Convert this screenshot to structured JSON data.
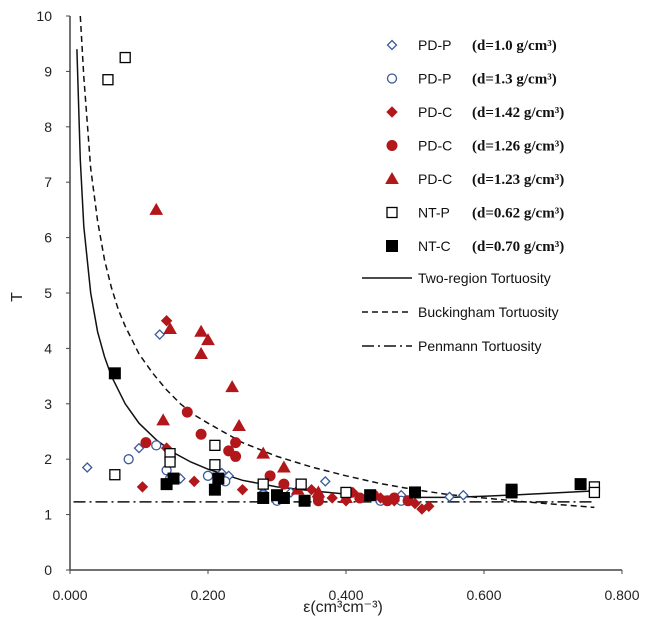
{
  "chart_data": {
    "type": "scatter",
    "xlabel": "ε(cm³cm⁻³)",
    "ylabel": "T",
    "xlim": [
      0,
      0.8
    ],
    "ylim": [
      0,
      10
    ],
    "x_ticks": [
      "0.000",
      "0.200",
      "0.400",
      "0.600",
      "0.800"
    ],
    "y_ticks": [
      "0",
      "1",
      "2",
      "3",
      "4",
      "5",
      "6",
      "7",
      "8",
      "9",
      "10"
    ],
    "grid": false,
    "legend_position": "top-right",
    "series": [
      {
        "name": "PD-P",
        "density_label": "(d=1.0  g/cm³)",
        "marker": "diamond-open",
        "color": "#3b5a9a",
        "points": [
          [
            0.025,
            1.85
          ],
          [
            0.1,
            2.2
          ],
          [
            0.13,
            4.25
          ],
          [
            0.145,
            1.95
          ],
          [
            0.16,
            1.65
          ],
          [
            0.22,
            1.75
          ],
          [
            0.23,
            1.7
          ],
          [
            0.28,
            1.4
          ],
          [
            0.32,
            1.4
          ],
          [
            0.37,
            1.6
          ],
          [
            0.42,
            1.3
          ],
          [
            0.48,
            1.35
          ],
          [
            0.55,
            1.32
          ],
          [
            0.57,
            1.35
          ]
        ]
      },
      {
        "name": "PD-P",
        "density_label": "(d=1.3  g/cm³)",
        "marker": "circle-open",
        "color": "#3b5a9a",
        "points": [
          [
            0.085,
            2.0
          ],
          [
            0.125,
            2.25
          ],
          [
            0.14,
            1.8
          ],
          [
            0.145,
            1.65
          ],
          [
            0.2,
            1.7
          ],
          [
            0.225,
            1.6
          ],
          [
            0.28,
            1.35
          ],
          [
            0.3,
            1.25
          ],
          [
            0.31,
            1.3
          ],
          [
            0.36,
            1.3
          ],
          [
            0.4,
            1.35
          ],
          [
            0.45,
            1.25
          ],
          [
            0.48,
            1.25
          ]
        ]
      },
      {
        "name": "PD-C",
        "density_label": "(d=1.42  g/cm³)",
        "marker": "diamond",
        "color": "#b2171b",
        "points": [
          [
            0.105,
            1.5
          ],
          [
            0.14,
            4.5
          ],
          [
            0.14,
            2.2
          ],
          [
            0.18,
            1.6
          ],
          [
            0.25,
            1.45
          ],
          [
            0.35,
            1.45
          ],
          [
            0.36,
            1.3
          ],
          [
            0.38,
            1.3
          ],
          [
            0.4,
            1.25
          ],
          [
            0.41,
            1.4
          ],
          [
            0.45,
            1.3
          ],
          [
            0.47,
            1.25
          ],
          [
            0.5,
            1.2
          ],
          [
            0.51,
            1.1
          ],
          [
            0.52,
            1.15
          ]
        ]
      },
      {
        "name": "PD-C",
        "density_label": "(d=1.26  g/cm³)",
        "marker": "circle",
        "color": "#b2171b",
        "points": [
          [
            0.11,
            2.3
          ],
          [
            0.17,
            2.85
          ],
          [
            0.19,
            2.45
          ],
          [
            0.23,
            2.15
          ],
          [
            0.24,
            2.3
          ],
          [
            0.24,
            2.05
          ],
          [
            0.29,
            1.7
          ],
          [
            0.31,
            1.55
          ],
          [
            0.36,
            1.25
          ],
          [
            0.4,
            1.35
          ],
          [
            0.42,
            1.3
          ],
          [
            0.44,
            1.35
          ],
          [
            0.46,
            1.25
          ],
          [
            0.47,
            1.3
          ],
          [
            0.49,
            1.25
          ]
        ]
      },
      {
        "name": "PD-C",
        "density_label": "(d=1.23  g/cm³)",
        "marker": "triangle",
        "color": "#b2171b",
        "points": [
          [
            0.125,
            6.5
          ],
          [
            0.135,
            2.7
          ],
          [
            0.145,
            4.35
          ],
          [
            0.19,
            4.3
          ],
          [
            0.19,
            3.9
          ],
          [
            0.2,
            4.15
          ],
          [
            0.235,
            3.3
          ],
          [
            0.245,
            2.6
          ],
          [
            0.28,
            2.1
          ],
          [
            0.31,
            1.85
          ],
          [
            0.33,
            1.45
          ],
          [
            0.36,
            1.4
          ],
          [
            0.4,
            1.3
          ]
        ]
      },
      {
        "name": "NT-P",
        "density_label": "(d=0.62  g/cm³)",
        "marker": "square-open",
        "color": "#000000",
        "points": [
          [
            0.055,
            8.85
          ],
          [
            0.065,
            1.72
          ],
          [
            0.08,
            9.25
          ],
          [
            0.145,
            2.1
          ],
          [
            0.145,
            1.95
          ],
          [
            0.21,
            2.25
          ],
          [
            0.21,
            1.9
          ],
          [
            0.28,
            1.55
          ],
          [
            0.335,
            1.55
          ],
          [
            0.4,
            1.4
          ],
          [
            0.5,
            1.4
          ],
          [
            0.76,
            1.5
          ],
          [
            0.76,
            1.4
          ]
        ]
      },
      {
        "name": "NT-C",
        "density_label": "(d=0.70  g/cm³)",
        "marker": "square",
        "color": "#000000",
        "points": [
          [
            0.065,
            3.55
          ],
          [
            0.14,
            1.55
          ],
          [
            0.15,
            1.65
          ],
          [
            0.21,
            1.45
          ],
          [
            0.215,
            1.65
          ],
          [
            0.28,
            1.3
          ],
          [
            0.3,
            1.35
          ],
          [
            0.31,
            1.3
          ],
          [
            0.34,
            1.25
          ],
          [
            0.435,
            1.35
          ],
          [
            0.5,
            1.4
          ],
          [
            0.64,
            1.45
          ],
          [
            0.64,
            1.4
          ],
          [
            0.74,
            1.55
          ]
        ]
      }
    ],
    "curves": [
      {
        "name": "Two-region Tortuosity",
        "style": "solid",
        "color": "#111111",
        "points": [
          [
            0.01,
            9.4
          ],
          [
            0.015,
            7.4
          ],
          [
            0.02,
            6.2
          ],
          [
            0.03,
            5.0
          ],
          [
            0.04,
            4.3
          ],
          [
            0.05,
            3.85
          ],
          [
            0.06,
            3.5
          ],
          [
            0.08,
            3.0
          ],
          [
            0.1,
            2.65
          ],
          [
            0.125,
            2.35
          ],
          [
            0.15,
            2.12
          ],
          [
            0.175,
            1.95
          ],
          [
            0.2,
            1.82
          ],
          [
            0.25,
            1.62
          ],
          [
            0.3,
            1.5
          ],
          [
            0.35,
            1.43
          ],
          [
            0.4,
            1.37
          ],
          [
            0.45,
            1.33
          ],
          [
            0.5,
            1.31
          ],
          [
            0.55,
            1.31
          ],
          [
            0.6,
            1.33
          ],
          [
            0.65,
            1.36
          ],
          [
            0.7,
            1.39
          ],
          [
            0.75,
            1.42
          ],
          [
            0.76,
            1.43
          ]
        ]
      },
      {
        "name": "Buckingham Tortuosity",
        "style": "dashed",
        "color": "#111111",
        "points": [
          [
            0.015,
            10.0
          ],
          [
            0.02,
            8.9
          ],
          [
            0.03,
            7.25
          ],
          [
            0.04,
            6.3
          ],
          [
            0.05,
            5.6
          ],
          [
            0.06,
            5.1
          ],
          [
            0.07,
            4.7
          ],
          [
            0.08,
            4.4
          ],
          [
            0.1,
            3.9
          ],
          [
            0.12,
            3.55
          ],
          [
            0.14,
            3.25
          ],
          [
            0.16,
            3.0
          ],
          [
            0.18,
            2.8
          ],
          [
            0.2,
            2.65
          ],
          [
            0.25,
            2.3
          ],
          [
            0.3,
            2.05
          ],
          [
            0.35,
            1.86
          ],
          [
            0.4,
            1.7
          ],
          [
            0.45,
            1.56
          ],
          [
            0.5,
            1.45
          ],
          [
            0.55,
            1.36
          ],
          [
            0.6,
            1.3
          ],
          [
            0.65,
            1.24
          ],
          [
            0.7,
            1.19
          ],
          [
            0.75,
            1.14
          ],
          [
            0.76,
            1.13
          ]
        ]
      },
      {
        "name": "Penmann Tortuosity",
        "style": "dash-dot",
        "color": "#111111",
        "points": [
          [
            0.005,
            1.23
          ],
          [
            0.76,
            1.23
          ]
        ]
      }
    ]
  }
}
